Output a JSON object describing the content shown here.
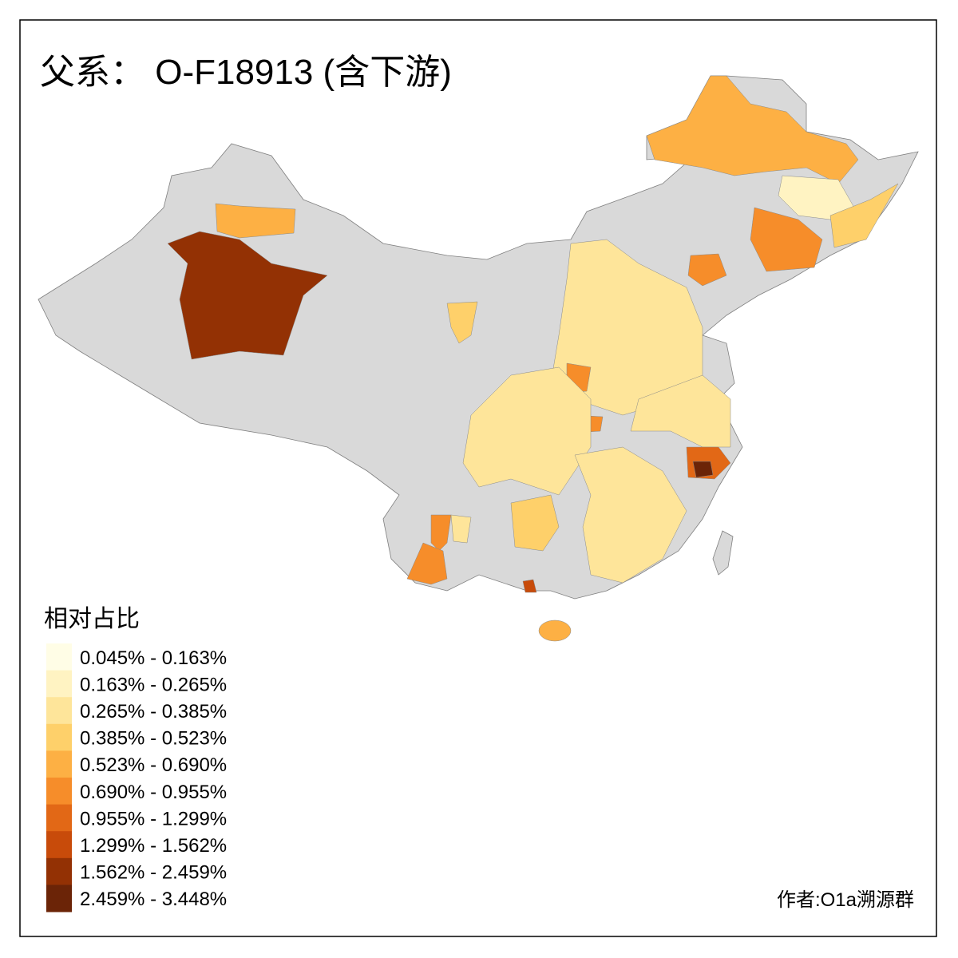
{
  "header": {
    "title": "父系： O-F18913 (含下游)"
  },
  "legend": {
    "title": "相对占比",
    "items": [
      {
        "label": "0.045% - 0.163%",
        "color": "#fffde6"
      },
      {
        "label": "0.163% - 0.265%",
        "color": "#fff3c2"
      },
      {
        "label": "0.265% - 0.385%",
        "color": "#fee59a"
      },
      {
        "label": "0.385% - 0.523%",
        "color": "#fed06a"
      },
      {
        "label": "0.523% - 0.690%",
        "color": "#fdb044"
      },
      {
        "label": "0.690% - 0.955%",
        "color": "#f68d2a"
      },
      {
        "label": "0.955% - 1.299%",
        "color": "#e26816"
      },
      {
        "label": "1.299% - 1.562%",
        "color": "#c84b0a"
      },
      {
        "label": "1.562% - 2.459%",
        "color": "#933104"
      },
      {
        "label": "2.459% - 3.448%",
        "color": "#6b2407"
      }
    ]
  },
  "footer": {
    "author": "作者:O1a溯源群"
  }
}
